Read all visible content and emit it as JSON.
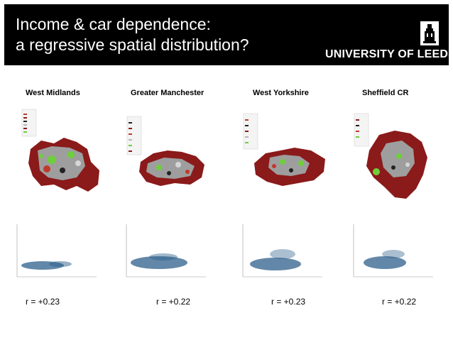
{
  "slide": {
    "title_line1": "Income & car dependence:",
    "title_line2": "a regressive spatial distribution?",
    "logo": {
      "text": "UNIVERSITY OF LEEDS",
      "icon": "leeds-parkinson-tower-crest"
    }
  },
  "colors": {
    "header_bg": "#000000",
    "high_dependence": "#8b1a1a",
    "medium": "#b5b5b5",
    "low": "#6fcf3a",
    "scatter_points": "#2d5f8b"
  },
  "panels": [
    {
      "region": "West Midlands",
      "r_value": "r = +0.23"
    },
    {
      "region": "Greater Manchester",
      "r_value": "r = +0.22"
    },
    {
      "region": "West Yorkshire",
      "r_value": "r = +0.23"
    },
    {
      "region": "Sheffield CR",
      "r_value": "r = +0.22"
    }
  ]
}
